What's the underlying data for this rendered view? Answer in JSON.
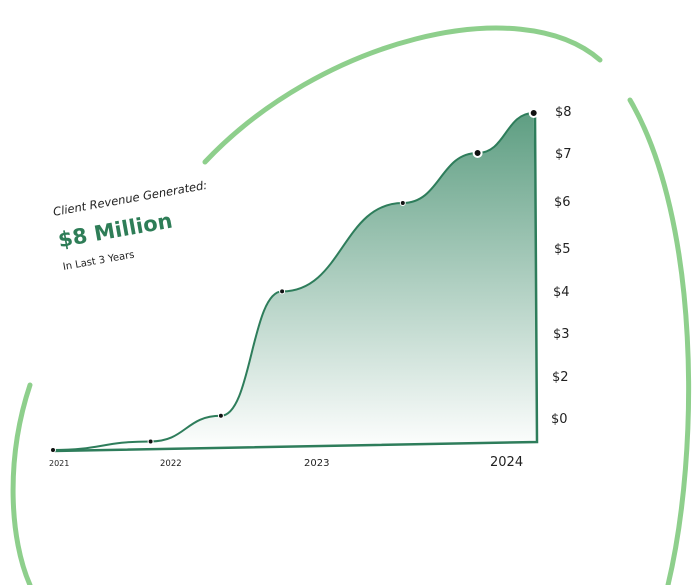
{
  "headline": {
    "label": "Client Revenue Generated:",
    "value": "$8 Million",
    "period": "In Last 3 Years"
  },
  "colors": {
    "line": "#2e7d5b",
    "fill_top": "#5e9e82",
    "decor_ring": "#8ecf8c",
    "value": "#2e7d57"
  },
  "chart_data": {
    "type": "area",
    "title": "Client Revenue Generated:",
    "x_ticks": [
      "2021",
      "2022",
      "2023",
      "2024"
    ],
    "y_ticks": [
      "$8",
      "$7",
      "$6",
      "$5",
      "$4",
      "$3",
      "$2",
      "$0"
    ],
    "points": [
      {
        "x": 2021.0,
        "y": 0
      },
      {
        "x": 2021.8,
        "y": 0.3
      },
      {
        "x": 2022.3,
        "y": 1.2
      },
      {
        "x": 2022.7,
        "y": 4.3
      },
      {
        "x": 2023.4,
        "y": 6.0
      },
      {
        "x": 2023.8,
        "y": 7.0
      },
      {
        "x": 2024.1,
        "y": 8.0
      }
    ],
    "grid": false,
    "legend": "none"
  }
}
